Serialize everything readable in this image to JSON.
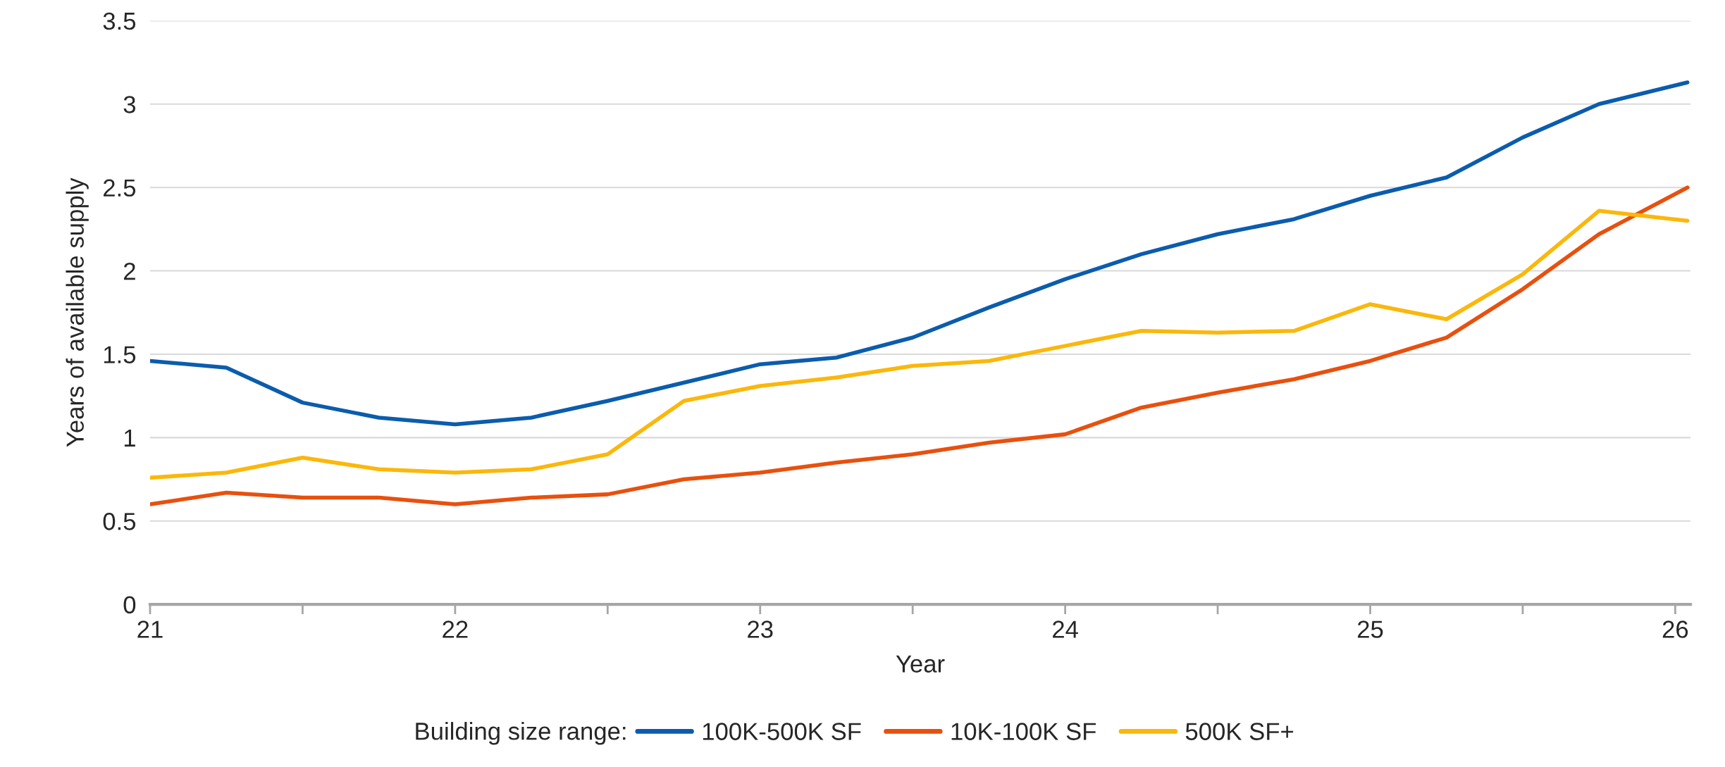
{
  "chart_data": {
    "type": "line",
    "xlabel": "Year",
    "ylabel": "Years of available supply",
    "legend_title": "Building size range:",
    "x": [
      21,
      21.25,
      21.5,
      21.75,
      22,
      22.25,
      22.5,
      22.75,
      23,
      23.25,
      23.5,
      23.75,
      24,
      24.25,
      24.5,
      24.75,
      25,
      25.25,
      25.5,
      25.75,
      26.04
    ],
    "series": [
      {
        "name": "100K-500K SF",
        "color": "#0b5cad",
        "values": [
          1.46,
          1.42,
          1.21,
          1.12,
          1.08,
          1.12,
          1.22,
          1.33,
          1.44,
          1.48,
          1.6,
          1.78,
          1.95,
          2.1,
          2.22,
          2.31,
          2.45,
          2.56,
          2.8,
          3.0,
          3.13
        ]
      },
      {
        "name": "10K-100K SF",
        "color": "#e8500e",
        "values": [
          0.6,
          0.67,
          0.64,
          0.64,
          0.6,
          0.64,
          0.66,
          0.75,
          0.79,
          0.85,
          0.9,
          0.97,
          1.02,
          1.18,
          1.27,
          1.35,
          1.46,
          1.6,
          1.89,
          2.22,
          2.5
        ]
      },
      {
        "name": "500K SF+",
        "color": "#fbb70a",
        "values": [
          0.76,
          0.79,
          0.88,
          0.81,
          0.79,
          0.81,
          0.9,
          1.22,
          1.31,
          1.36,
          1.43,
          1.46,
          1.55,
          1.64,
          1.63,
          1.64,
          1.8,
          1.71,
          1.98,
          2.36,
          2.3
        ]
      }
    ],
    "xlim": [
      21,
      26.05
    ],
    "xticks": [
      21,
      {
        "value": 21.5,
        "label": null
      },
      22,
      {
        "value": 22.5,
        "label": null
      },
      23,
      {
        "value": 23.5,
        "label": null
      },
      24,
      {
        "value": 24.5,
        "label": null
      },
      25,
      {
        "value": 25.5,
        "label": null
      },
      26
    ],
    "ylim": [
      0,
      3.5
    ],
    "yticks": [
      0,
      0.5,
      1,
      1.5,
      2,
      2.5,
      3,
      3.5
    ],
    "grid": "y",
    "legend": "bottom",
    "marker": "none",
    "line_style": "solid"
  }
}
